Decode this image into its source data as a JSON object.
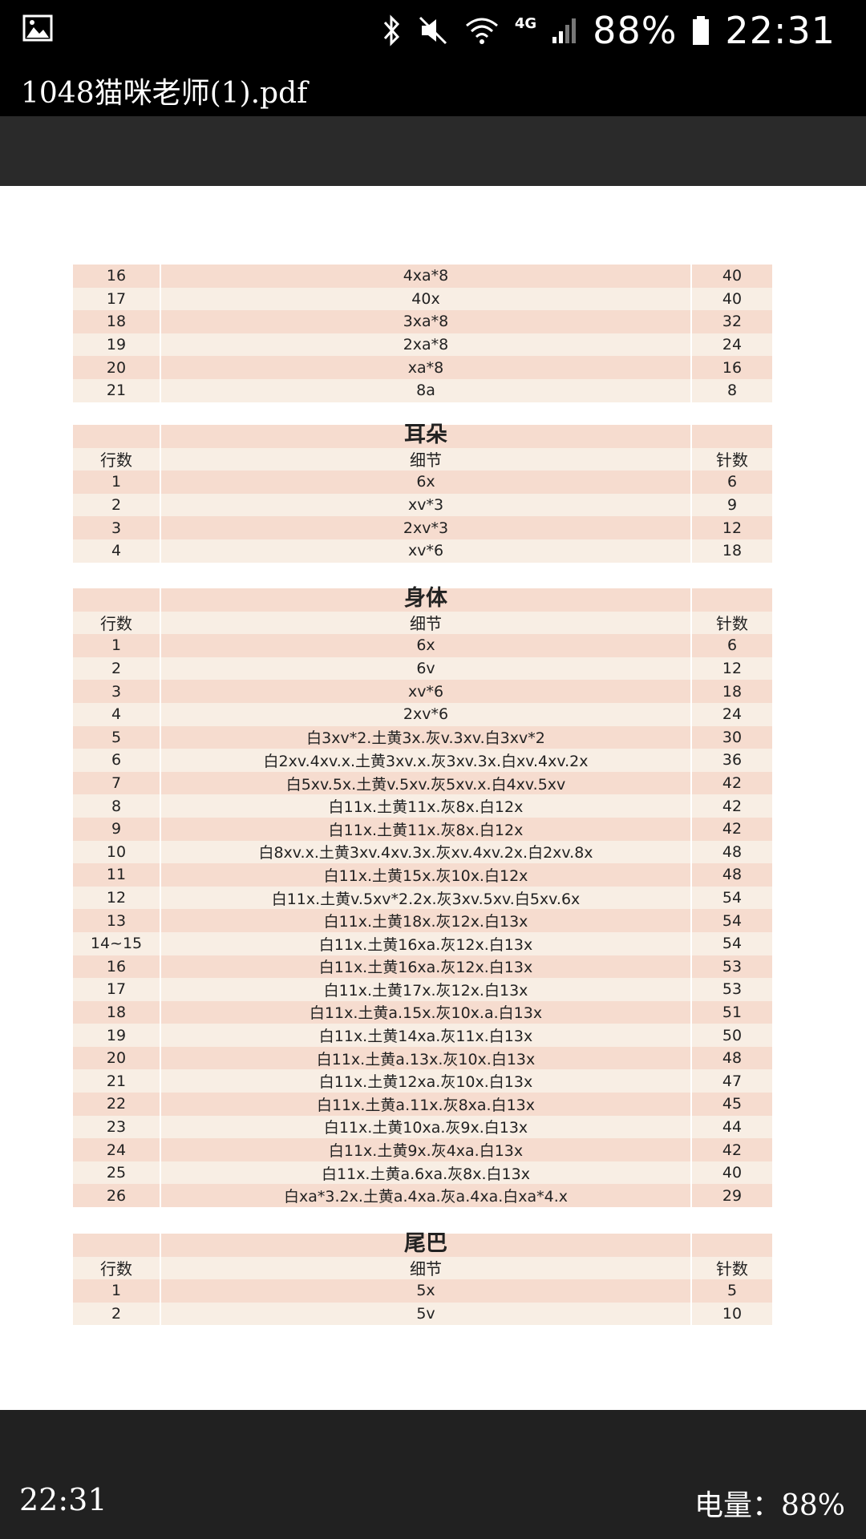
{
  "status_bar": {
    "network": "4G",
    "battery_percent": "88%",
    "time": "22:31"
  },
  "title_bar": {
    "title": "1048猫咪老师(1).pdf"
  },
  "tables": [
    {
      "title": "",
      "header": null,
      "rows": [
        [
          "16",
          "4xa*8",
          "40"
        ],
        [
          "17",
          "40x",
          "40"
        ],
        [
          "18",
          "3xa*8",
          "32"
        ],
        [
          "19",
          "2xa*8",
          "24"
        ],
        [
          "20",
          "xa*8",
          "16"
        ],
        [
          "21",
          "8a",
          "8"
        ]
      ]
    },
    {
      "title": "耳朵",
      "header": [
        "行数",
        "细节",
        "针数"
      ],
      "rows": [
        [
          "1",
          "6x",
          "6"
        ],
        [
          "2",
          "xv*3",
          "9"
        ],
        [
          "3",
          "2xv*3",
          "12"
        ],
        [
          "4",
          "xv*6",
          "18"
        ]
      ]
    },
    {
      "title": "身体",
      "header": [
        "行数",
        "细节",
        "针数"
      ],
      "rows": [
        [
          "1",
          "6x",
          "6"
        ],
        [
          "2",
          "6v",
          "12"
        ],
        [
          "3",
          "xv*6",
          "18"
        ],
        [
          "4",
          "2xv*6",
          "24"
        ],
        [
          "5",
          "白3xv*2.土黄3x.灰v.3xv.白3xv*2",
          "30"
        ],
        [
          "6",
          "白2xv.4xv.x.土黄3xv.x.灰3xv.3x.白xv.4xv.2x",
          "36"
        ],
        [
          "7",
          "白5xv.5x.土黄v.5xv.灰5xv.x.白4xv.5xv",
          "42"
        ],
        [
          "8",
          "白11x.土黄11x.灰8x.白12x",
          "42"
        ],
        [
          "9",
          "白11x.土黄11x.灰8x.白12x",
          "42"
        ],
        [
          "10",
          "白8xv.x.土黄3xv.4xv.3x.灰xv.4xv.2x.白2xv.8x",
          "48"
        ],
        [
          "11",
          "白11x.土黄15x.灰10x.白12x",
          "48"
        ],
        [
          "12",
          "白11x.土黄v.5xv*2.2x.灰3xv.5xv.白5xv.6x",
          "54"
        ],
        [
          "13",
          "白11x.土黄18x.灰12x.白13x",
          "54"
        ],
        [
          "14~15",
          "白11x.土黄16xa.灰12x.白13x",
          "54"
        ],
        [
          "16",
          "白11x.土黄16xa.灰12x.白13x",
          "53"
        ],
        [
          "17",
          "白11x.土黄17x.灰12x.白13x",
          "53"
        ],
        [
          "18",
          "白11x.土黄a.15x.灰10x.a.白13x",
          "51"
        ],
        [
          "19",
          "白11x.土黄14xa.灰11x.白13x",
          "50"
        ],
        [
          "20",
          "白11x.土黄a.13x.灰10x.白13x",
          "48"
        ],
        [
          "21",
          "白11x.土黄12xa.灰10x.白13x",
          "47"
        ],
        [
          "22",
          "白11x.土黄a.11x.灰8xa.白13x",
          "45"
        ],
        [
          "23",
          "白11x.土黄10xa.灰9x.白13x",
          "44"
        ],
        [
          "24",
          "白11x.土黄9x.灰4xa.白13x",
          "42"
        ],
        [
          "25",
          "白11x.土黄a.6xa.灰8x.白13x",
          "40"
        ],
        [
          "26",
          "白xa*3.2x.土黄a.4xa.灰a.4xa.白xa*4.x",
          "29"
        ]
      ]
    },
    {
      "title": "尾巴",
      "header": [
        "行数",
        "细节",
        "针数"
      ],
      "rows": [
        [
          "1",
          "5x",
          "5"
        ],
        [
          "2",
          "5v",
          "10"
        ]
      ]
    }
  ],
  "bottom_bar": {
    "time": "22:31",
    "battery_label": "电量：88%"
  },
  "colors": {
    "row_dark": "#f6dccf",
    "row_light": "#f8eee4",
    "bar_black": "#000000",
    "toolbar_gray": "#2a2a2a"
  },
  "icons": [
    "gallery-icon",
    "bluetooth-icon",
    "mute-icon",
    "wifi-icon",
    "signal-icon",
    "battery-icon"
  ]
}
